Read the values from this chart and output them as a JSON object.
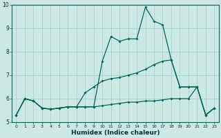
{
  "xlabel": "Humidex (Indice chaleur)",
  "background_color": "#cce8e5",
  "grid_color": "#aacfcc",
  "line_color": "#006655",
  "xlim": [
    -0.5,
    23.5
  ],
  "ylim": [
    5,
    10
  ],
  "yticks": [
    5,
    6,
    7,
    8,
    9,
    10
  ],
  "xticks": [
    0,
    1,
    2,
    3,
    4,
    5,
    6,
    7,
    8,
    9,
    10,
    11,
    12,
    13,
    14,
    15,
    16,
    17,
    18,
    19,
    20,
    21,
    22,
    23
  ],
  "line1_y": [
    5.3,
    6.0,
    5.9,
    5.6,
    5.55,
    5.6,
    5.65,
    5.65,
    5.65,
    5.65,
    5.7,
    5.75,
    5.8,
    5.85,
    5.85,
    5.9,
    5.9,
    5.95,
    6.0,
    6.0,
    6.0,
    6.5,
    5.3,
    5.6
  ],
  "line2_y": [
    5.3,
    6.0,
    5.9,
    5.6,
    5.55,
    5.6,
    5.65,
    5.65,
    5.65,
    5.65,
    7.6,
    8.65,
    8.45,
    8.55,
    8.55,
    9.9,
    9.3,
    9.15,
    7.65,
    6.5,
    6.5,
    6.5,
    5.3,
    5.6
  ],
  "line3_y": [
    5.3,
    6.0,
    5.9,
    5.6,
    5.55,
    5.6,
    5.65,
    5.65,
    6.25,
    6.5,
    6.75,
    6.85,
    6.9,
    7.0,
    7.1,
    7.25,
    7.45,
    7.6,
    7.65,
    6.5,
    6.5,
    6.5,
    5.3,
    5.6
  ]
}
